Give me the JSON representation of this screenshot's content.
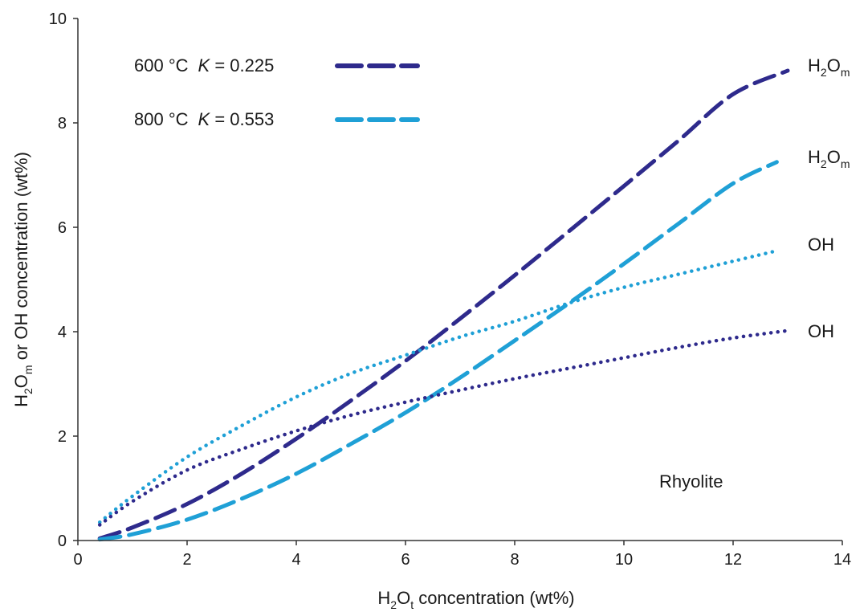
{
  "chart_data": {
    "type": "line",
    "xlabel": {
      "prefix": "H",
      "sub1": "2",
      "mid": "O",
      "sub2": "t",
      "suffix": " concentration (wt%)"
    },
    "ylabel": {
      "prefix": "H",
      "sub1": "2",
      "mid": "O",
      "sub2": "m",
      "suffix": " or OH concentration (wt%)"
    },
    "xlim": [
      0,
      14
    ],
    "ylim": [
      0,
      10
    ],
    "xticks": [
      "0",
      "2",
      "4",
      "6",
      "8",
      "10",
      "12",
      "14"
    ],
    "yticks": [
      "0",
      "2",
      "4",
      "6",
      "8",
      "10"
    ],
    "grid": false,
    "legend": {
      "placement": "top-left",
      "entries": [
        {
          "temp": "600 °C",
          "k_symbol": "K",
          "k_value": " = 0.225",
          "color": "#2e2a8c"
        },
        {
          "temp": "800 °C",
          "k_symbol": "K",
          "k_value": " = 0.553",
          "color": "#1fa0d6"
        }
      ]
    },
    "series": [
      {
        "temperature": "600 °C",
        "species": "H2Om",
        "style": "dashed",
        "color": "#2e2a8c",
        "x": [
          0.4,
          1,
          2,
          3,
          4,
          5,
          6,
          7,
          8,
          9,
          10,
          11,
          12,
          13
        ],
        "y": [
          0.04,
          0.25,
          0.7,
          1.28,
          1.95,
          2.68,
          3.44,
          4.25,
          5.08,
          5.93,
          6.79,
          7.66,
          8.55,
          9.0
        ]
      },
      {
        "temperature": "800 °C",
        "species": "H2Om",
        "style": "dashed",
        "color": "#1fa0d6",
        "x": [
          0.4,
          1,
          2,
          3,
          4,
          5,
          6,
          7,
          8,
          9,
          10,
          11,
          12,
          12.8
        ],
        "y": [
          0.02,
          0.12,
          0.4,
          0.8,
          1.28,
          1.85,
          2.45,
          3.12,
          3.83,
          4.55,
          5.3,
          6.07,
          6.84,
          7.25
        ]
      },
      {
        "temperature": "800 °C",
        "species": "OH",
        "style": "dotted",
        "color": "#1fa0d6",
        "x": [
          0.4,
          1,
          2,
          3,
          4,
          5,
          6,
          7,
          8,
          9,
          10,
          11,
          12,
          12.8
        ],
        "y": [
          0.35,
          0.85,
          1.6,
          2.2,
          2.75,
          3.2,
          3.55,
          3.9,
          4.2,
          4.55,
          4.85,
          5.1,
          5.35,
          5.55
        ]
      },
      {
        "temperature": "600 °C",
        "species": "OH",
        "style": "dotted",
        "color": "#2e2a8c",
        "x": [
          0.4,
          1,
          2,
          3,
          4,
          5,
          6,
          7,
          8,
          9,
          10,
          11,
          12,
          13
        ],
        "y": [
          0.3,
          0.75,
          1.35,
          1.75,
          2.1,
          2.4,
          2.65,
          2.88,
          3.1,
          3.3,
          3.5,
          3.7,
          3.88,
          4.02
        ]
      }
    ],
    "curve_labels": [
      {
        "prefix": "H",
        "sub1": "2",
        "mid": "O",
        "sub2": "m",
        "at_y": 9.0
      },
      {
        "prefix": "H",
        "sub1": "2",
        "mid": "O",
        "sub2": "m",
        "at_y": 7.25
      },
      {
        "text": "OH",
        "at_y": 5.55
      },
      {
        "text": "OH",
        "at_y": 4.02
      }
    ],
    "annotation": "Rhyolite"
  }
}
